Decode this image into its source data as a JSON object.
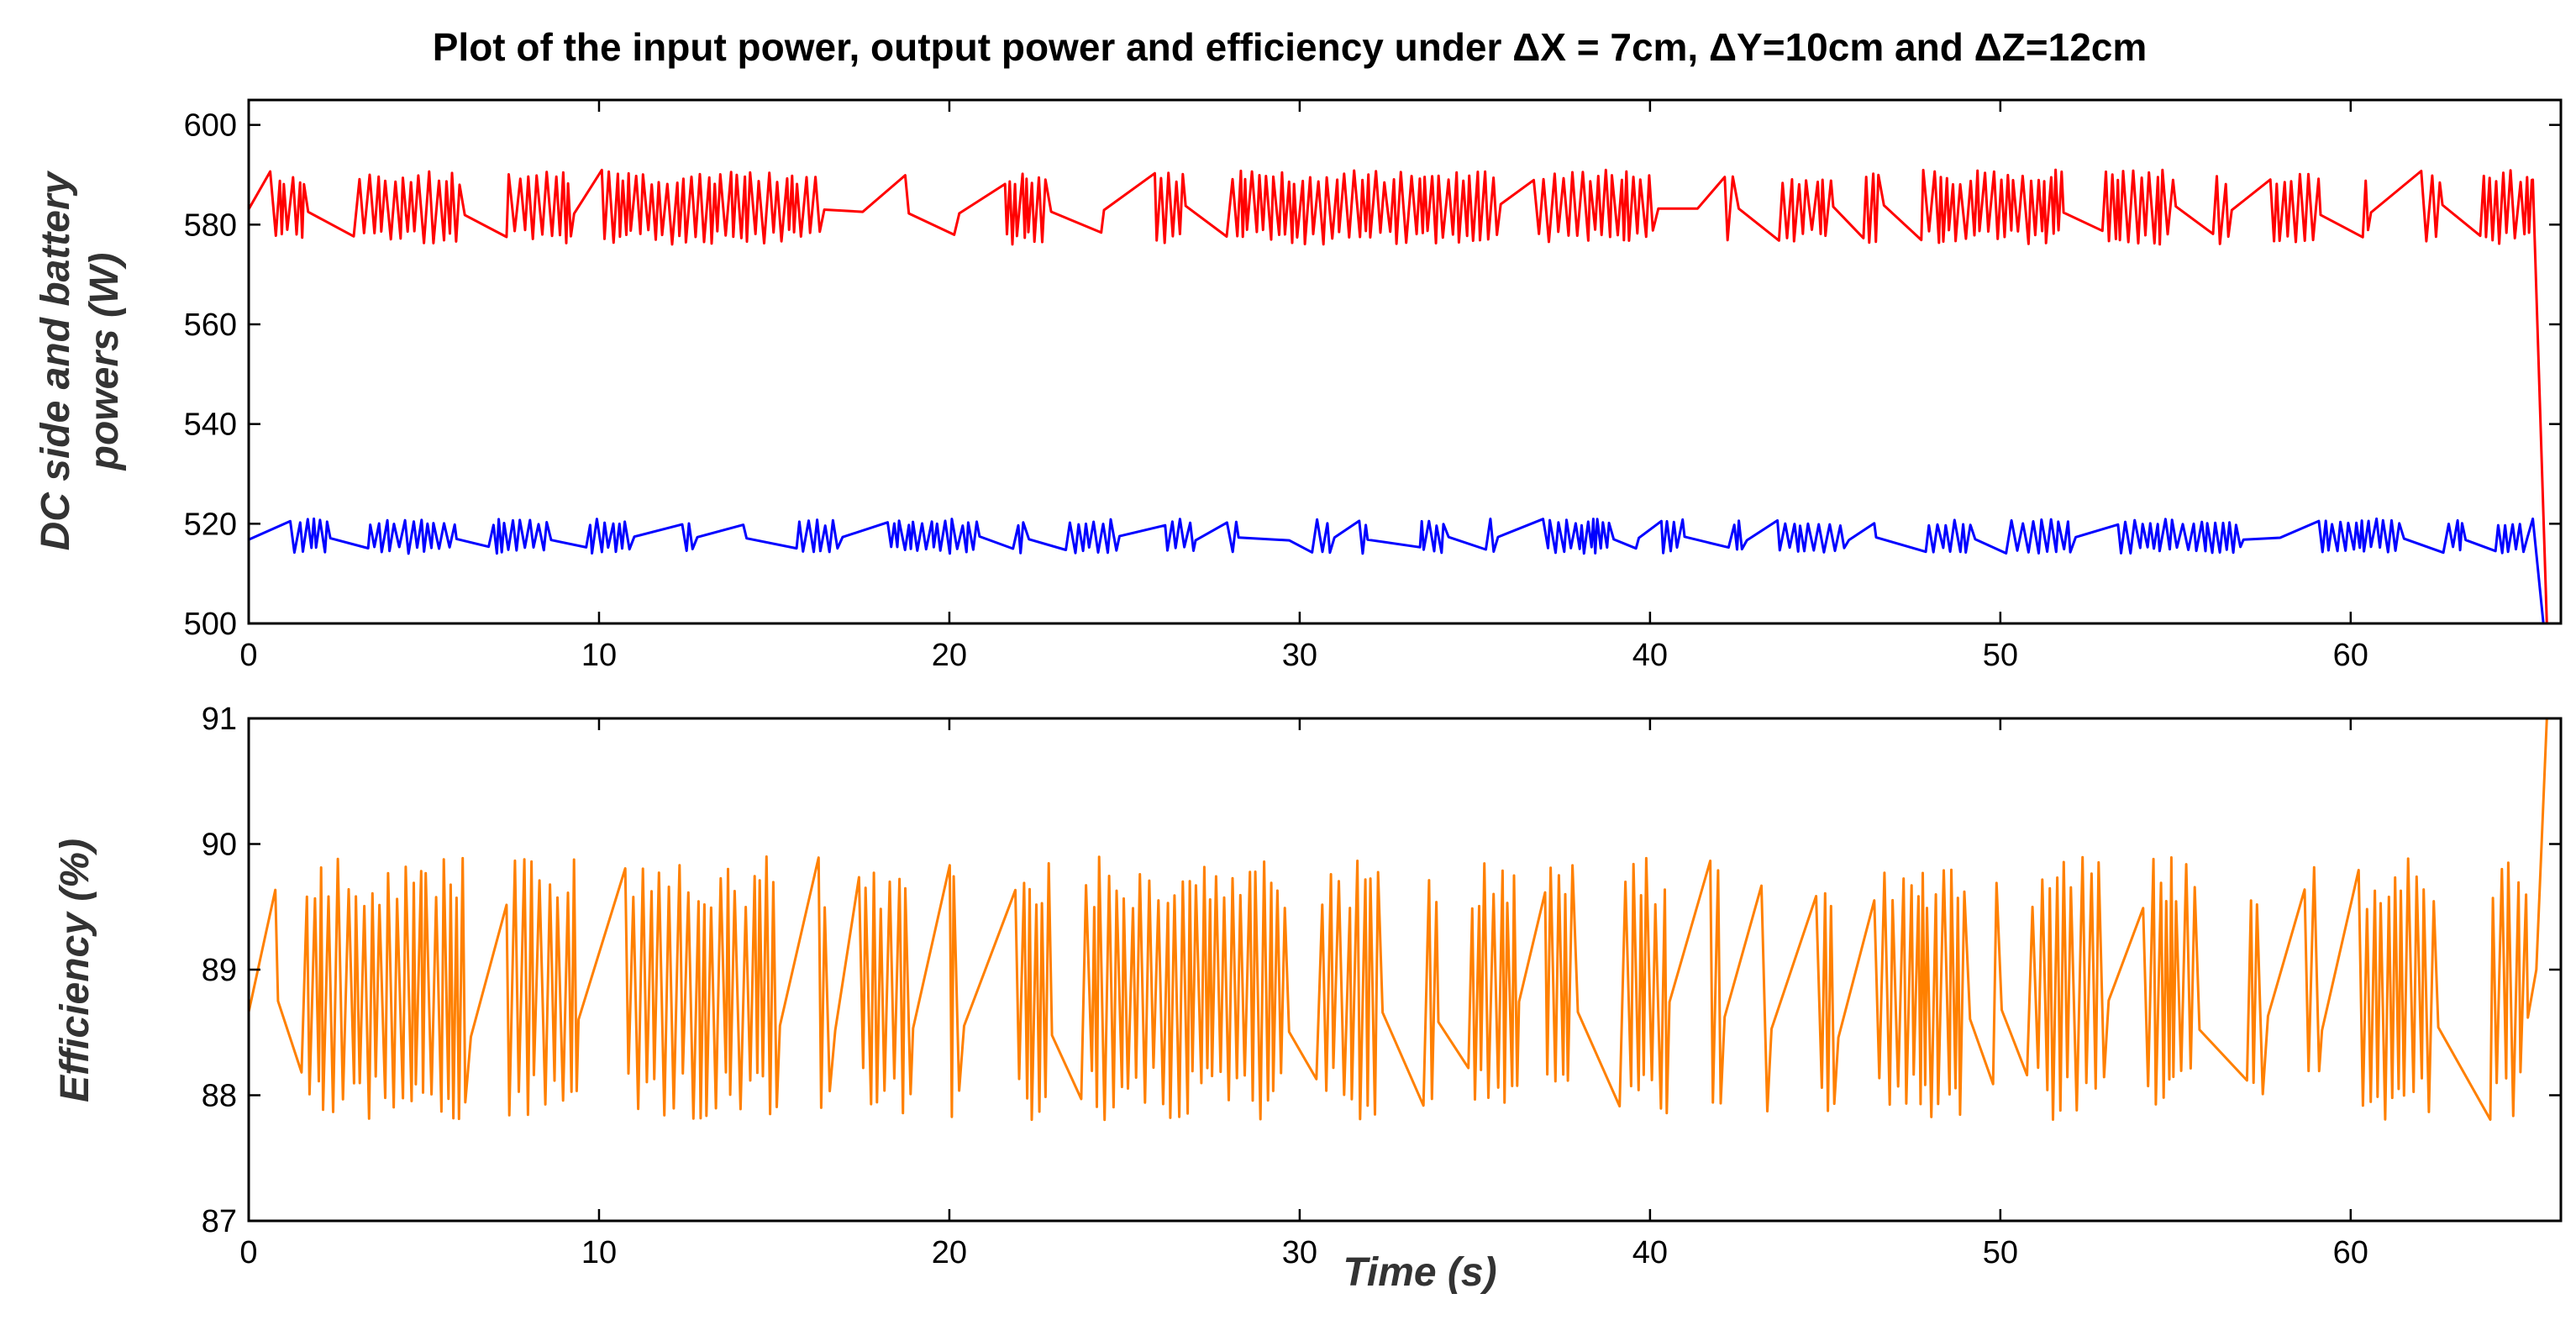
{
  "title": "Plot of the input power, output power and efficiency under ΔX = 7cm, ΔY=10cm and ΔZ=12cm",
  "chart_data": [
    {
      "type": "line",
      "ylabel_line1": "DC side and battery",
      "ylabel_line2": "powers (W)",
      "xlim": [
        0,
        66
      ],
      "ylim": [
        500,
        605
      ],
      "xticks": [
        "0",
        "10",
        "20",
        "30",
        "40",
        "50",
        "60"
      ],
      "yticks": [
        "500",
        "520",
        "540",
        "560",
        "580",
        "600"
      ],
      "series": [
        {
          "color": "#ff0000",
          "band_low": 576,
          "band_high": 591,
          "center": 583,
          "end_drop": {
            "start_x": 65.2,
            "start_y": 589,
            "end_x": 65.6,
            "end_y": 500
          }
        },
        {
          "color": "#0000ff",
          "band_low": 514,
          "band_high": 521,
          "center": 517,
          "end_drop": {
            "start_x": 65.2,
            "start_y": 521,
            "end_x": 65.5,
            "end_y": 500
          }
        }
      ]
    },
    {
      "type": "line",
      "ylabel": "Efficiency (%)",
      "xlabel": "Time (s)",
      "xlim": [
        0,
        66
      ],
      "ylim": [
        87,
        91
      ],
      "xticks": [
        "0",
        "10",
        "20",
        "30",
        "40",
        "50",
        "60"
      ],
      "yticks": [
        "87",
        "88",
        "89",
        "90",
        "91"
      ],
      "series": [
        {
          "color": "#ff8000",
          "band_low": 87.8,
          "band_high": 89.9,
          "center": 88.6,
          "end_rise": {
            "start_x": 65.3,
            "start_y": 89.0,
            "end_x": 65.6,
            "end_y": 91.0
          }
        }
      ]
    }
  ]
}
